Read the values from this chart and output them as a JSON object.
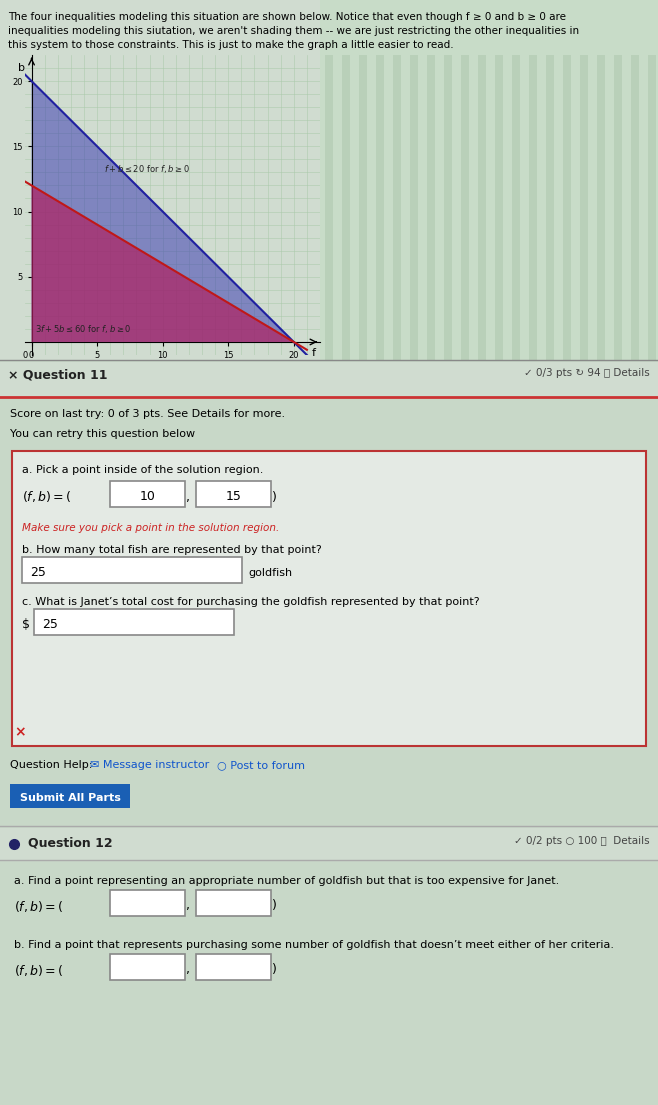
{
  "page_bg": "#c8d8c8",
  "graph_bg": "#d0dcd0",
  "intro_text_line1": "The four inequalities modeling this situation are shown below. Notice that even though f ≥ 0 and b ≥ 0 are",
  "intro_text_line2": "inequalities modeling this siutation, we aren't shading them -- we are just restricting the other inequalities in",
  "intro_text_line3": "this system to those constraints. This is just to make the graph a little easier to read.",
  "q11_header": "× Question 11",
  "q11_pts": "✓ 0/3 pts ↻ 94 ⓘ Details",
  "q11_score_text": "Score on last try: 0 of 3 pts. See Details for more.",
  "q11_retry_text": "You can retry this question below",
  "q11a_label": "a. Pick a point inside of the solution region.",
  "q11a_f": "10",
  "q11a_b": "15",
  "q11a_error": "Make sure you pick a point in the solution region.",
  "q11b_label": "b. How many total fish are represented by that point?",
  "q11b_value": "25",
  "q11b_unit": "goldfish",
  "q11c_label": "c. What is Janet’s total cost for purchasing the goldfish represented by that point?",
  "q11c_value": "25",
  "q11_help_pre": "Question Help: ",
  "q11_help_msg": "✉ Message instructor",
  "q11_help_post": "  ○ Post to forum",
  "q11_submit": "Submit All Parts",
  "q12_header": "Question 12",
  "q12_pts": "✓ 0/2 pts ○ 100 ⓘ  Details",
  "q12a_label": "a. Find a point representing an appropriate number of goldfish but that is too expensive for Janet.",
  "q12b_label": "b. Find a point that represents purchasing some number of goldfish that doesn’t meet either of her criteria.",
  "stripe_color": "#b8ccb8",
  "blue_color": "#3030b0",
  "red_color": "#b02060",
  "blue_line_color": "#2020a0",
  "red_line_color": "#c01818"
}
